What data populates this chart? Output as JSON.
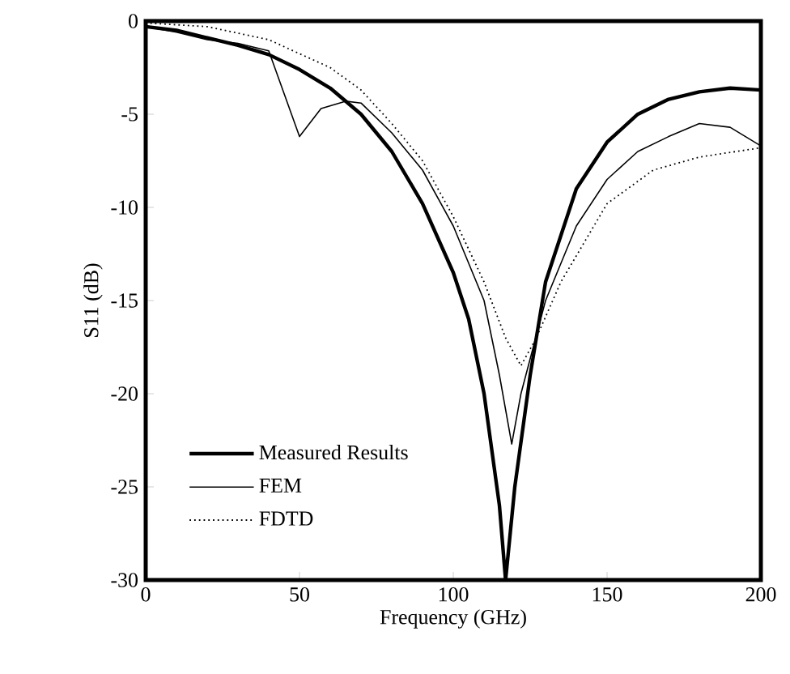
{
  "chart_data": {
    "type": "line",
    "xlabel": "Frequency (GHz)",
    "ylabel": "S11 (dB)",
    "xlim": [
      0,
      200
    ],
    "ylim": [
      -30,
      0
    ],
    "xticks": [
      0,
      50,
      100,
      150,
      200
    ],
    "yticks": [
      -30,
      -25,
      -20,
      -15,
      -10,
      -5,
      0
    ],
    "legend": "bottom left",
    "grid": false,
    "series": [
      {
        "name": "Measured Results",
        "color": "#000000",
        "line_style": "solid",
        "x": [
          0,
          10,
          20,
          30,
          40,
          50,
          60,
          70,
          80,
          90,
          100,
          105,
          110,
          115,
          117,
          120,
          125,
          130,
          140,
          150,
          160,
          170,
          180,
          190,
          200
        ],
        "values": [
          -0.3,
          -0.5,
          -0.9,
          -1.3,
          -1.8,
          -2.6,
          -3.6,
          -5,
          -7,
          -9.8,
          -13.5,
          -16,
          -20,
          -26,
          -30,
          -25,
          -19,
          -14,
          -9,
          -6.5,
          -5,
          -4.2,
          -3.8,
          -3.6,
          -3.7
        ]
      },
      {
        "name": "FEM",
        "color": "#000000",
        "line_style": "solid",
        "x": [
          0,
          10,
          20,
          30,
          40,
          50,
          57,
          65,
          70,
          80,
          90,
          100,
          110,
          115,
          119,
          122,
          130,
          140,
          150,
          160,
          170,
          180,
          190,
          200
        ],
        "values": [
          -0.3,
          -0.6,
          -1.0,
          -1.2,
          -1.6,
          -6.2,
          -4.7,
          -4.3,
          -4.4,
          -6,
          -8,
          -11,
          -15,
          -19,
          -22.7,
          -20,
          -15,
          -11,
          -8.5,
          -7,
          -6.2,
          -5.5,
          -5.7,
          -6.7
        ]
      },
      {
        "name": "FDTD",
        "color": "#000000",
        "line_style": "dotted",
        "x": [
          0,
          20,
          40,
          60,
          70,
          80,
          90,
          100,
          110,
          117,
          122,
          127,
          135,
          150,
          165,
          180,
          200
        ],
        "values": [
          -0.1,
          -0.3,
          -1.0,
          -2.5,
          -3.7,
          -5.5,
          -7.5,
          -10.5,
          -14,
          -17,
          -18.5,
          -17,
          -14,
          -9.8,
          -8,
          -7.3,
          -6.8
        ]
      }
    ]
  }
}
